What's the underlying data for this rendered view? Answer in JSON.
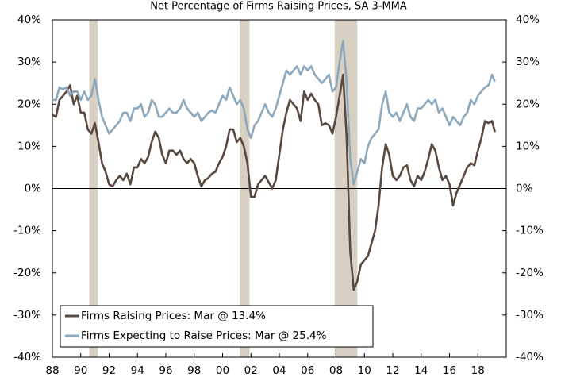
{
  "chart_data": {
    "type": "line",
    "title": "Net Percentage of Firms Raising Prices, SA 3-MMA",
    "x": [
      1988,
      1988.25,
      1988.5,
      1988.75,
      1989,
      1989.25,
      1989.5,
      1989.75,
      1990,
      1990.25,
      1990.5,
      1990.75,
      1991,
      1991.25,
      1991.5,
      1991.75,
      1992,
      1992.25,
      1992.5,
      1992.75,
      1993,
      1993.25,
      1993.5,
      1993.75,
      1994,
      1994.25,
      1994.5,
      1994.75,
      1995,
      1995.25,
      1995.5,
      1995.75,
      1996,
      1996.25,
      1996.5,
      1996.75,
      1997,
      1997.25,
      1997.5,
      1997.75,
      1998,
      1998.25,
      1998.5,
      1998.75,
      1999,
      1999.25,
      1999.5,
      1999.75,
      2000,
      2000.25,
      2000.5,
      2000.75,
      2001,
      2001.25,
      2001.5,
      2001.75,
      2002,
      2002.25,
      2002.5,
      2002.75,
      2003,
      2003.25,
      2003.5,
      2003.75,
      2004,
      2004.25,
      2004.5,
      2004.75,
      2005,
      2005.25,
      2005.5,
      2005.75,
      2006,
      2006.25,
      2006.5,
      2006.75,
      2007,
      2007.25,
      2007.5,
      2007.75,
      2008,
      2008.25,
      2008.5,
      2008.75,
      2009,
      2009.25,
      2009.5,
      2009.75,
      2010,
      2010.25,
      2010.5,
      2010.75,
      2011,
      2011.25,
      2011.5,
      2011.75,
      2012,
      2012.25,
      2012.5,
      2012.75,
      2013,
      2013.25,
      2013.5,
      2013.75,
      2014,
      2014.25,
      2014.5,
      2014.75,
      2015,
      2015.25,
      2015.5,
      2015.75,
      2016,
      2016.25,
      2016.5,
      2016.75,
      2017,
      2017.25,
      2017.5,
      2017.75,
      2018,
      2018.25,
      2018.5,
      2018.75,
      2019,
      2019.2
    ],
    "series": [
      {
        "name": "Firms Raising Prices: Mar @ 13.4%",
        "color": "#58483f",
        "values": [
          17.5,
          17,
          21,
          22,
          23,
          24.5,
          20,
          22,
          18,
          18,
          14,
          13,
          15.5,
          11,
          6,
          4,
          1,
          0.5,
          2,
          3,
          2,
          3.5,
          1,
          5,
          5,
          7,
          6,
          7.5,
          11,
          13.5,
          12,
          8,
          6,
          9,
          9,
          8,
          9,
          7,
          6,
          7,
          6,
          3,
          0.5,
          2,
          2.5,
          3.5,
          4,
          6,
          7.5,
          10,
          14,
          14,
          11,
          12,
          10,
          6,
          -2,
          -2,
          1,
          2,
          3,
          1.5,
          0,
          2,
          8,
          14,
          18,
          21,
          20,
          19,
          16,
          23,
          21,
          22.5,
          21,
          20,
          15,
          15.5,
          15,
          13,
          17,
          22,
          27,
          12,
          -15,
          -24,
          -22,
          -18,
          -17,
          -16,
          -13,
          -10,
          -4,
          5,
          10.5,
          8,
          3,
          2,
          3,
          5,
          5.5,
          2,
          0.5,
          3,
          2,
          4,
          7,
          10.5,
          9,
          5,
          2,
          3,
          1,
          -4,
          -1,
          1,
          3,
          5,
          6,
          5.5,
          9,
          12,
          16,
          15.5,
          16,
          13.4
        ]
      },
      {
        "name": "Firms Expecting to Raise Prices: Mar @ 25.4%",
        "color": "#8da8bd",
        "values": [
          21,
          21,
          24,
          23.5,
          24,
          22,
          23,
          23,
          21,
          23,
          21,
          22,
          26,
          21,
          17,
          15,
          13,
          14,
          15,
          16,
          18,
          18,
          16,
          19,
          19,
          20,
          17,
          18,
          21,
          20,
          17,
          17,
          18,
          19,
          18,
          18,
          19,
          21,
          19,
          18,
          17,
          18,
          16,
          17,
          18,
          18.5,
          18,
          20,
          22,
          21,
          24,
          22,
          20,
          21,
          19,
          14,
          12,
          15,
          16,
          18,
          20,
          18,
          17,
          19,
          22,
          25,
          28,
          27,
          28,
          29,
          27,
          29,
          28,
          29,
          27,
          26,
          25,
          26,
          27,
          23,
          24,
          30,
          35,
          25,
          7,
          1,
          4,
          7,
          6,
          10,
          12,
          13,
          14,
          20,
          23,
          18,
          17,
          18,
          16,
          18,
          20,
          17,
          16,
          19,
          19,
          20,
          21,
          20,
          21,
          18,
          19,
          17,
          15,
          17,
          16,
          15,
          17,
          18,
          21,
          20,
          22,
          23,
          24,
          24.5,
          27,
          25.4
        ]
      }
    ],
    "recessions": [
      [
        1990.6,
        1991.2
      ],
      [
        2001.2,
        2001.9
      ],
      [
        2007.9,
        2009.5
      ]
    ],
    "recession_color": "#d8d1c3",
    "xlim": [
      1988,
      2020
    ],
    "xticks": [
      {
        "value": 1988,
        "label": "88"
      },
      {
        "value": 1990,
        "label": "90"
      },
      {
        "value": 1992,
        "label": "92"
      },
      {
        "value": 1994,
        "label": "94"
      },
      {
        "value": 1996,
        "label": "96"
      },
      {
        "value": 1998,
        "label": "98"
      },
      {
        "value": 2000,
        "label": "00"
      },
      {
        "value": 2002,
        "label": "02"
      },
      {
        "value": 2004,
        "label": "04"
      },
      {
        "value": 2006,
        "label": "06"
      },
      {
        "value": 2008,
        "label": "08"
      },
      {
        "value": 2010,
        "label": "10"
      },
      {
        "value": 2012,
        "label": "12"
      },
      {
        "value": 2014,
        "label": "14"
      },
      {
        "value": 2016,
        "label": "16"
      },
      {
        "value": 2018,
        "label": "18"
      }
    ],
    "ylim": [
      -40,
      40
    ],
    "yticks": [
      {
        "value": -40,
        "label": "-40%"
      },
      {
        "value": -30,
        "label": "-30%"
      },
      {
        "value": -20,
        "label": "-20%"
      },
      {
        "value": -10,
        "label": "-10%"
      },
      {
        "value": 0,
        "label": "0%"
      },
      {
        "value": 10,
        "label": "10%"
      },
      {
        "value": 20,
        "label": "20%"
      },
      {
        "value": 30,
        "label": "30%"
      },
      {
        "value": 40,
        "label": "40%"
      }
    ],
    "y2lim": [
      -40,
      40
    ],
    "y2ticks": [
      {
        "value": -40,
        "label": "-40%"
      },
      {
        "value": -30,
        "label": "-30%"
      },
      {
        "value": -20,
        "label": "-20%"
      },
      {
        "value": -10,
        "label": "-10%"
      },
      {
        "value": 0,
        "label": "0%"
      },
      {
        "value": 10,
        "label": "10%"
      },
      {
        "value": 20,
        "label": "20%"
      },
      {
        "value": 30,
        "label": "30%"
      },
      {
        "value": 40,
        "label": "40%"
      }
    ],
    "legend": "lower left"
  }
}
